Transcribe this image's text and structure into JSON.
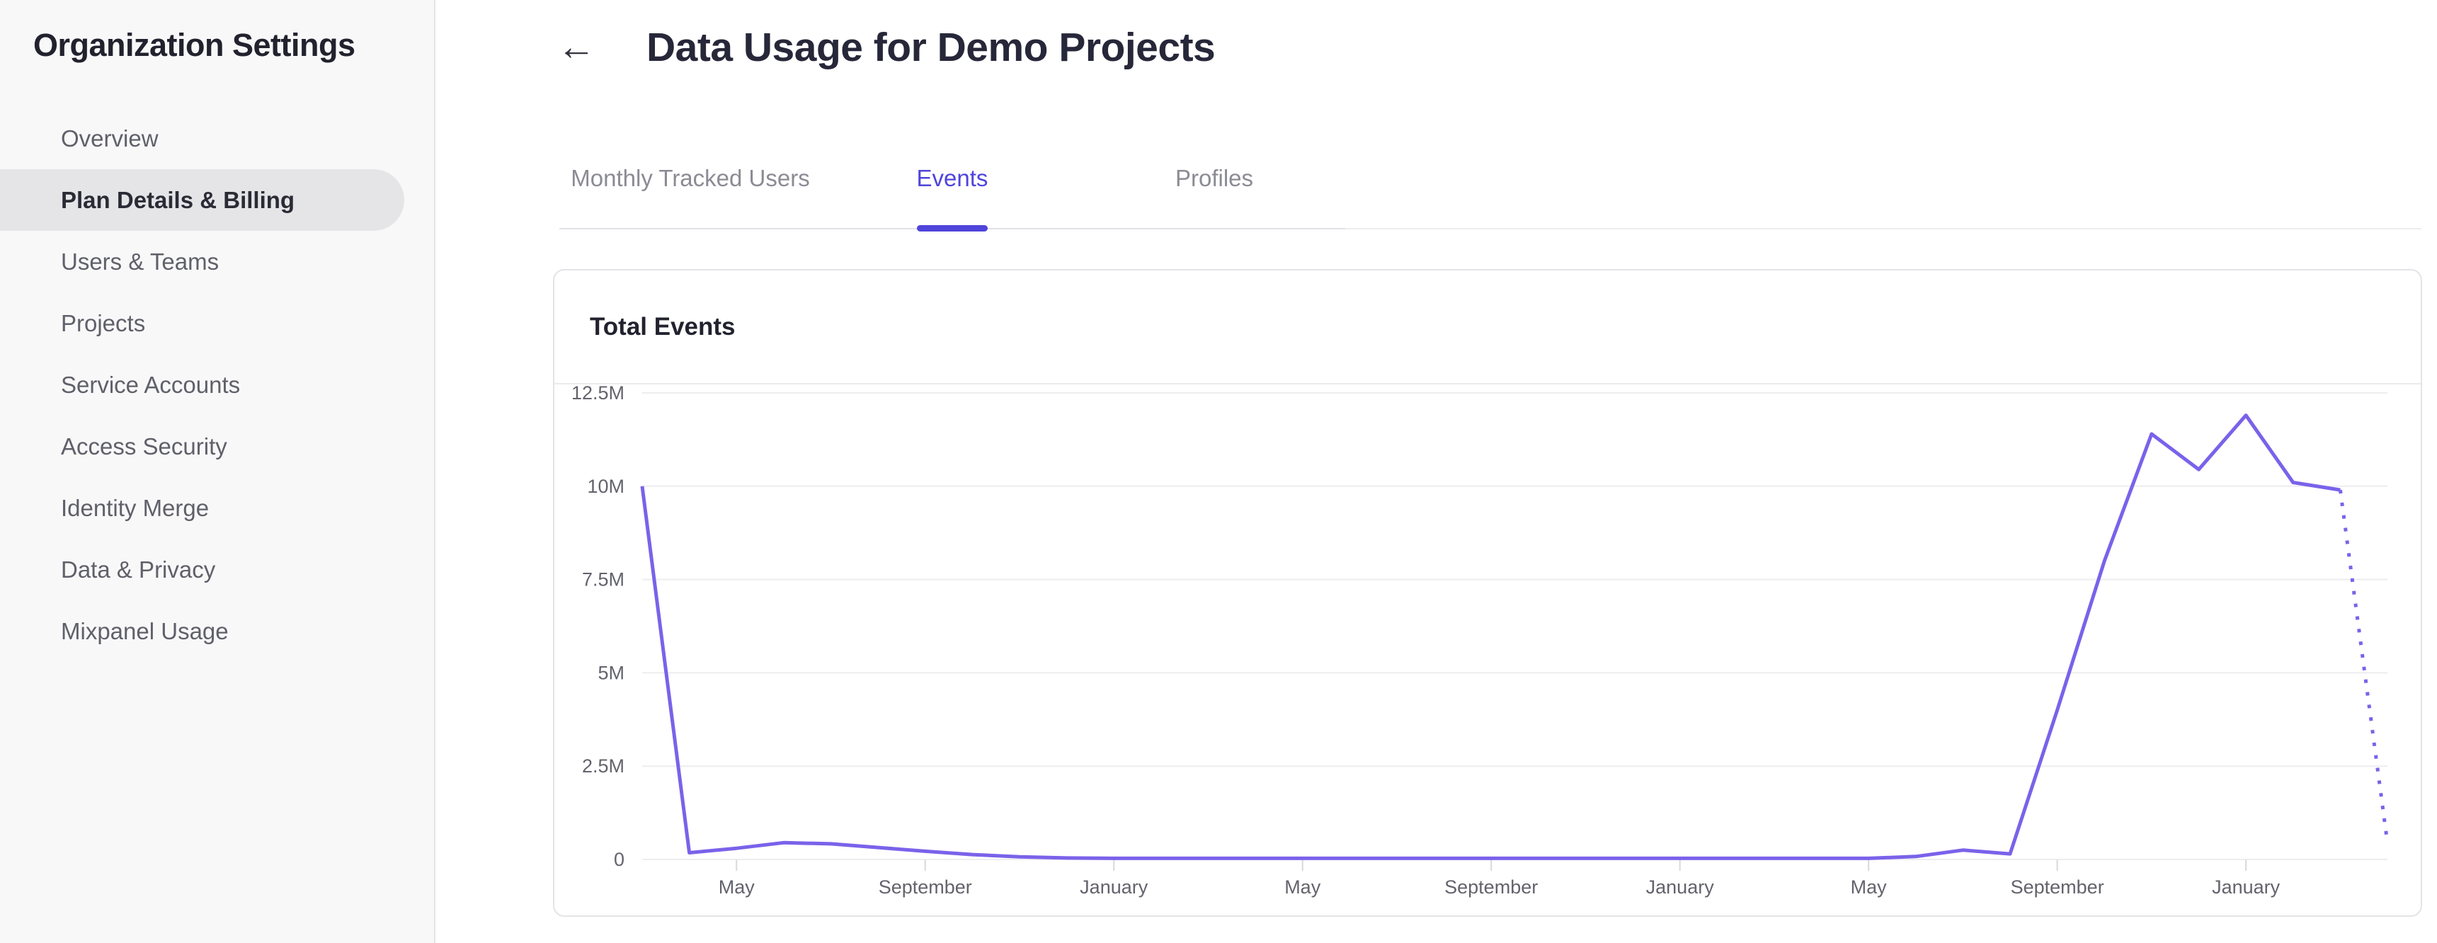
{
  "sidebar": {
    "title": "Organization Settings",
    "items": [
      {
        "label": "Overview",
        "active": false
      },
      {
        "label": "Plan Details & Billing",
        "active": true
      },
      {
        "label": "Users & Teams",
        "active": false
      },
      {
        "label": "Projects",
        "active": false
      },
      {
        "label": "Service Accounts",
        "active": false
      },
      {
        "label": "Access Security",
        "active": false
      },
      {
        "label": "Identity Merge",
        "active": false
      },
      {
        "label": "Data & Privacy",
        "active": false
      },
      {
        "label": "Mixpanel Usage",
        "active": false
      }
    ]
  },
  "header": {
    "back_icon": "←",
    "title": "Data Usage for Demo Projects"
  },
  "tabs": [
    {
      "label": "Monthly Tracked Users",
      "active": false
    },
    {
      "label": "Events",
      "active": true
    },
    {
      "label": "Profiles",
      "active": false
    }
  ],
  "card": {
    "title": "Total Events"
  },
  "chart_data": {
    "type": "line",
    "title": "Total Events",
    "unit": "millions of events per month",
    "ylabel": "",
    "xlabel": "",
    "ylim": [
      0,
      12.5
    ],
    "grid": true,
    "legend": "none",
    "y_ticks": [
      {
        "label": "12.5M",
        "value": 12.5
      },
      {
        "label": "10M",
        "value": 10
      },
      {
        "label": "7.5M",
        "value": 7.5
      },
      {
        "label": "5M",
        "value": 5
      },
      {
        "label": "2.5M",
        "value": 2.5
      },
      {
        "label": "0",
        "value": 0
      }
    ],
    "x_tick_labels": [
      "May",
      "September",
      "January",
      "May",
      "September",
      "January",
      "May",
      "September",
      "January"
    ],
    "x_tick_indices": [
      2,
      6,
      10,
      14,
      18,
      22,
      26,
      30,
      34
    ],
    "values_millions": [
      10.0,
      0.18,
      0.3,
      0.45,
      0.42,
      0.32,
      0.22,
      0.13,
      0.07,
      0.04,
      0.03,
      0.03,
      0.03,
      0.03,
      0.03,
      0.03,
      0.03,
      0.03,
      0.03,
      0.03,
      0.03,
      0.03,
      0.03,
      0.03,
      0.03,
      0.03,
      0.03,
      0.08,
      0.25,
      0.15,
      4.0,
      8.0,
      11.4,
      10.45,
      11.9,
      10.1,
      9.9,
      0.45
    ],
    "projected_last_segment": true,
    "projection_style": "dotted",
    "line_color": "#7A62EA",
    "grid_color": "#ededf0",
    "tick_color": "#d9d9dd",
    "accent_color": "#4F44DB"
  }
}
